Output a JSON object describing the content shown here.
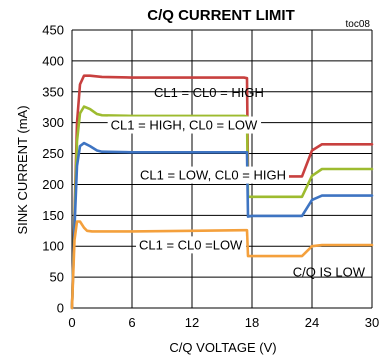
{
  "chart_data": {
    "type": "line",
    "title": "C/Q CURRENT LIMIT",
    "figure_ref": "toc08",
    "xlabel": "C/Q VOLTAGE (V)",
    "ylabel": "SINK CURRENT (mA)",
    "xlim": [
      0,
      30
    ],
    "ylim": [
      0,
      450
    ],
    "xticks": [
      "0",
      "6",
      "12",
      "18",
      "24",
      "30"
    ],
    "yticks": [
      "0",
      "50",
      "100",
      "150",
      "200",
      "250",
      "300",
      "350",
      "400",
      "450"
    ],
    "grid": true,
    "annotations": [
      "CL1 = CL0 = HIGH",
      "CL1 = HIGH, CL0 = LOW",
      "CL1 = LOW, CL0 = HIGH",
      "CL1 = CL0 =LOW",
      "C/Q IS LOW"
    ],
    "series": [
      {
        "name": "CL1 = CL0 = HIGH",
        "color": "#c8403f",
        "x": [
          0,
          0.25,
          0.5,
          0.8,
          1.2,
          1.8,
          3,
          6,
          12,
          17.2,
          17.5,
          17.6,
          18,
          23,
          24,
          25,
          30
        ],
        "y": [
          0,
          150,
          300,
          362,
          376,
          376,
          374,
          373,
          373,
          373,
          372,
          215,
          213,
          213,
          255,
          265,
          265
        ]
      },
      {
        "name": "CL1 = HIGH, CL0 = LOW",
        "color": "#9dbb2f",
        "x": [
          0,
          0.25,
          0.5,
          0.8,
          1.2,
          1.8,
          2.5,
          3,
          6,
          12,
          17.2,
          17.5,
          17.6,
          18,
          23,
          24,
          25,
          30
        ],
        "y": [
          0,
          140,
          270,
          315,
          326,
          322,
          314,
          312,
          311,
          311,
          311,
          310,
          180,
          180,
          180,
          214,
          225,
          225
        ]
      },
      {
        "name": "CL1 = LOW, CL0 = HIGH",
        "color": "#3e74c2",
        "x": [
          0,
          0.25,
          0.5,
          0.8,
          1.2,
          1.8,
          2.5,
          3,
          6,
          12,
          17.2,
          17.5,
          17.6,
          18,
          23,
          24,
          25,
          30
        ],
        "y": [
          0,
          130,
          230,
          262,
          267,
          262,
          255,
          253,
          252,
          252,
          252,
          252,
          148,
          149,
          149,
          175,
          182,
          182
        ]
      },
      {
        "name": "CL1 = CL0 =LOW",
        "color": "#f4a03c",
        "x": [
          0,
          0.25,
          0.5,
          0.8,
          1.2,
          1.5,
          2,
          3,
          6,
          12,
          17.2,
          17.5,
          17.6,
          18,
          23,
          24,
          25,
          30
        ],
        "y": [
          0,
          110,
          140,
          140,
          130,
          125,
          124,
          124,
          124,
          125,
          126,
          126,
          84,
          84,
          84,
          100,
          102,
          102
        ]
      }
    ]
  }
}
